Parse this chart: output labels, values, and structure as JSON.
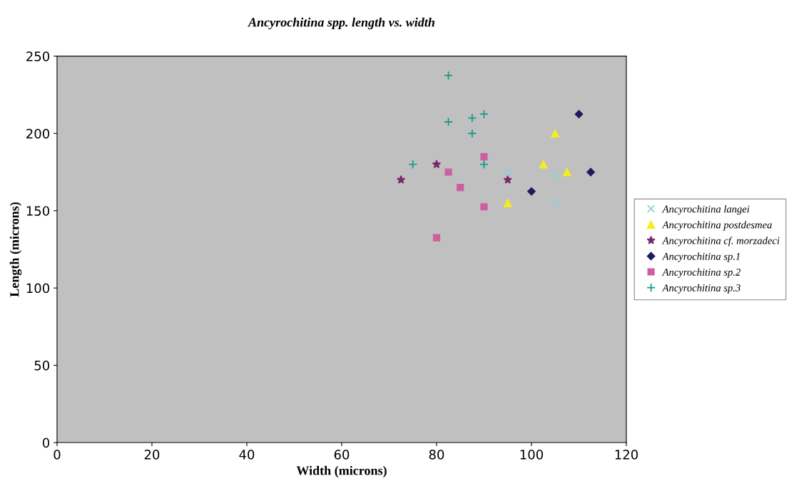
{
  "chart_data": {
    "type": "scatter",
    "title": "Ancyrochitina spp. length vs. width",
    "xlabel": "Width (microns)",
    "ylabel": "Length (microns)",
    "xlim": [
      0,
      120
    ],
    "xticks": [
      0,
      20,
      40,
      60,
      80,
      100,
      120
    ],
    "ylim": [
      0,
      250
    ],
    "yticks": [
      0,
      50,
      100,
      150,
      200,
      250
    ],
    "grid": false,
    "legend": "right",
    "series": [
      {
        "name": "Ancyrochitina langei",
        "color": "#8fd0d6",
        "marker": "cross",
        "x": [
          95,
          105,
          105
        ],
        "values": [
          175,
          173,
          155
        ]
      },
      {
        "name": "Ancyrochitina postdesmea",
        "color": "#f2ee1e",
        "marker": "triangle",
        "x": [
          105,
          102.5,
          107.5,
          95
        ],
        "values": [
          200,
          180,
          175,
          155
        ]
      },
      {
        "name": "Ancyrochitina cf. morzadeci",
        "color": "#7b2a6e",
        "marker": "star",
        "x": [
          72.5,
          80,
          95
        ],
        "values": [
          170,
          180,
          170
        ]
      },
      {
        "name": "Ancyrochitina sp.1",
        "color": "#1c1c5e",
        "marker": "diamond",
        "x": [
          110,
          112.5,
          100
        ],
        "values": [
          212.5,
          175,
          162.5
        ]
      },
      {
        "name": "Ancyrochitina sp.2",
        "color": "#cc5fa0",
        "marker": "square",
        "x": [
          90,
          82.5,
          85,
          90,
          80
        ],
        "values": [
          185,
          175,
          165,
          152.5,
          132.5
        ]
      },
      {
        "name": "Ancyrochitina sp.3",
        "color": "#1a9a8a",
        "marker": "plus",
        "x": [
          82.5,
          82.5,
          87.5,
          90,
          87.5,
          75,
          90
        ],
        "values": [
          237.5,
          207.5,
          210,
          212.5,
          200,
          180,
          180
        ]
      }
    ]
  }
}
